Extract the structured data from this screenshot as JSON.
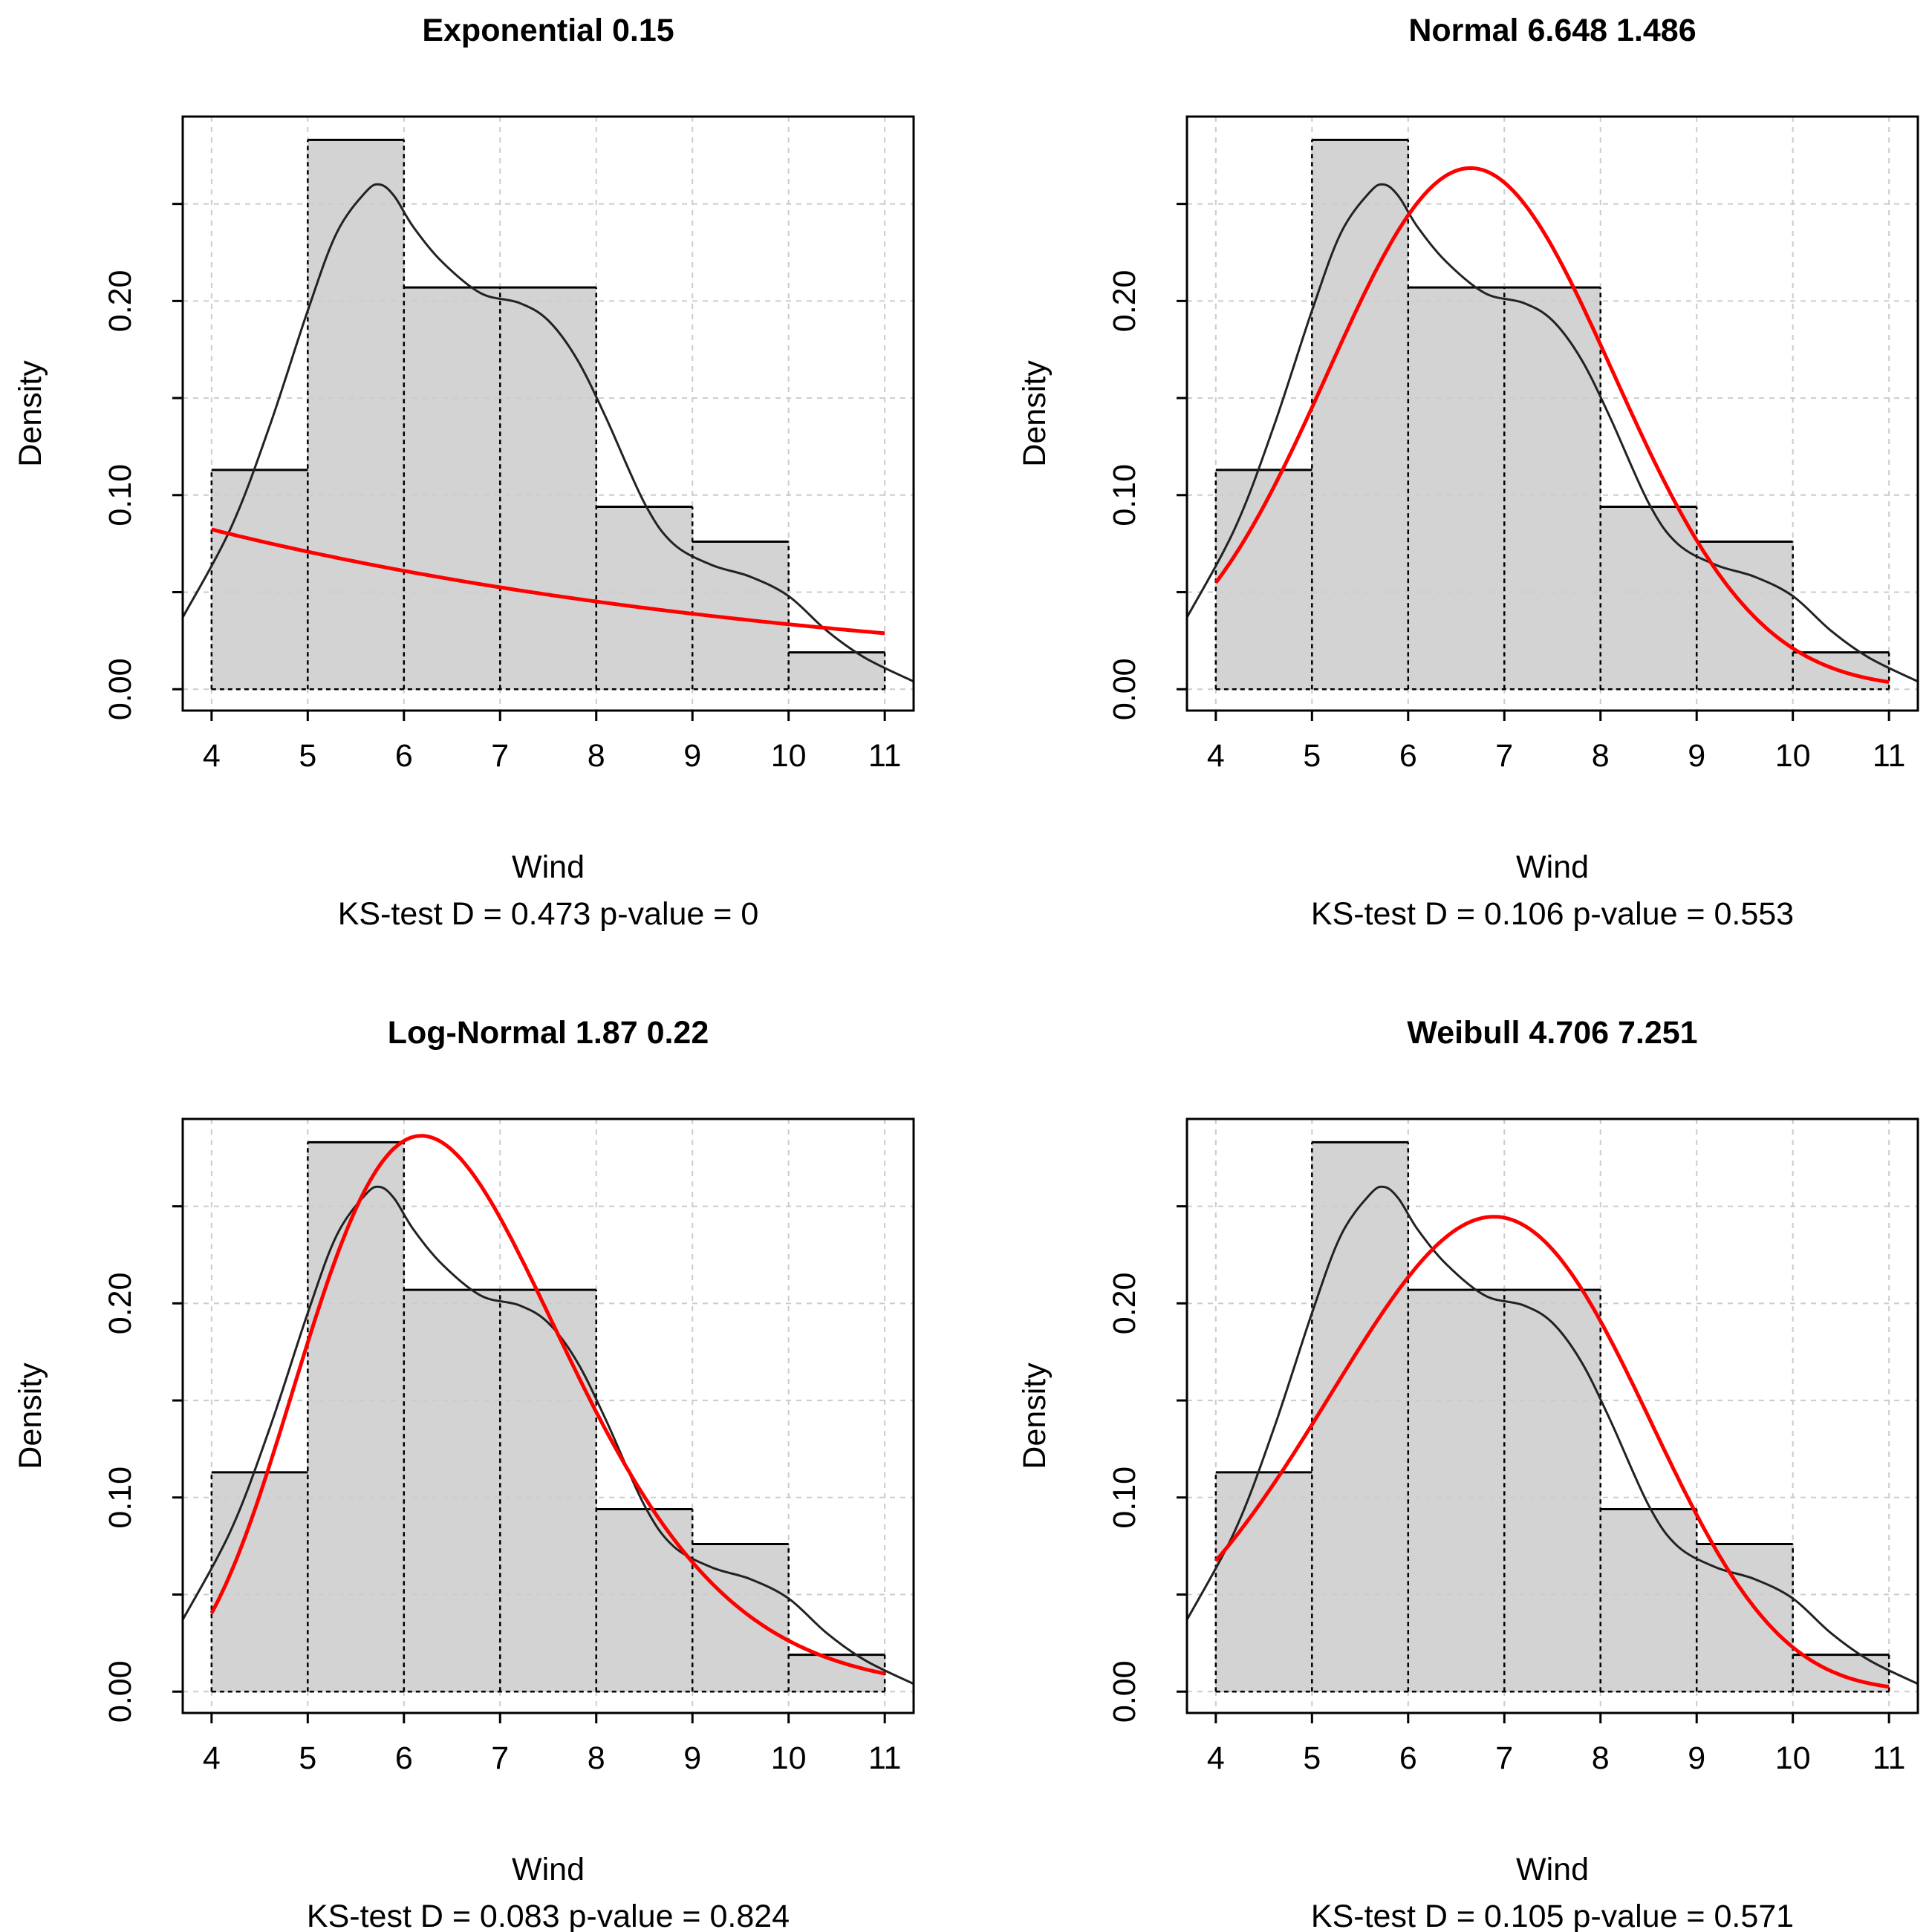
{
  "figure": {
    "rows": 2,
    "cols": 2
  },
  "chart_data": [
    {
      "type": "histogram",
      "title": "Exponential 0.15",
      "xlabel": "Wind",
      "ylabel": "Density",
      "subtitle": "KS-test D =  0.473 p-value =  0",
      "xlim": [
        3.7,
        11.3
      ],
      "ylim": [
        -0.011,
        0.295
      ],
      "x_ticks": [
        4,
        5,
        6,
        7,
        8,
        9,
        10,
        11
      ],
      "y_ticks": [
        0,
        0.05,
        0.1,
        0.15,
        0.2,
        0.25
      ],
      "y_tick_labels": [
        "0.00",
        "",
        "0.10",
        "",
        "0.20",
        ""
      ],
      "grid": true,
      "bins": [
        4,
        5,
        6,
        7,
        8,
        9,
        10,
        11
      ],
      "densities": [
        0.113,
        0.283,
        0.207,
        0.207,
        0.094,
        0.076,
        0.019
      ],
      "kde": {
        "x": [
          3.7,
          4.2,
          4.6,
          5.0,
          5.3,
          5.6,
          5.75,
          5.9,
          6.1,
          6.4,
          6.8,
          7.2,
          7.5,
          7.8,
          8.1,
          8.5,
          8.8,
          9.2,
          9.6,
          10.0,
          10.4,
          10.8,
          11.3
        ],
        "y": [
          0.037,
          0.083,
          0.135,
          0.195,
          0.235,
          0.256,
          0.26,
          0.254,
          0.238,
          0.22,
          0.204,
          0.199,
          0.19,
          0.17,
          0.14,
          0.096,
          0.075,
          0.064,
          0.058,
          0.048,
          0.03,
          0.016,
          0.004
        ]
      },
      "fit": {
        "name": "Exponential",
        "params": [
          0.15
        ]
      }
    },
    {
      "type": "histogram",
      "title": "Normal  6.648 1.486",
      "xlabel": "Wind",
      "ylabel": "Density",
      "subtitle": "KS-test D =  0.106 p-value =  0.553",
      "xlim": [
        3.7,
        11.3
      ],
      "ylim": [
        -0.011,
        0.295
      ],
      "x_ticks": [
        4,
        5,
        6,
        7,
        8,
        9,
        10,
        11
      ],
      "y_ticks": [
        0,
        0.05,
        0.1,
        0.15,
        0.2,
        0.25
      ],
      "y_tick_labels": [
        "0.00",
        "",
        "0.10",
        "",
        "0.20",
        ""
      ],
      "grid": true,
      "bins": [
        4,
        5,
        6,
        7,
        8,
        9,
        10,
        11
      ],
      "densities": [
        0.113,
        0.283,
        0.207,
        0.207,
        0.094,
        0.076,
        0.019
      ],
      "kde": {
        "x": [
          3.7,
          4.2,
          4.6,
          5.0,
          5.3,
          5.6,
          5.75,
          5.9,
          6.1,
          6.4,
          6.8,
          7.2,
          7.5,
          7.8,
          8.1,
          8.5,
          8.8,
          9.2,
          9.6,
          10.0,
          10.4,
          10.8,
          11.3
        ],
        "y": [
          0.037,
          0.083,
          0.135,
          0.195,
          0.235,
          0.256,
          0.26,
          0.254,
          0.238,
          0.22,
          0.204,
          0.199,
          0.19,
          0.17,
          0.14,
          0.096,
          0.075,
          0.064,
          0.058,
          0.048,
          0.03,
          0.016,
          0.004
        ]
      },
      "fit": {
        "name": "Normal",
        "params": [
          6.648,
          1.486
        ]
      }
    },
    {
      "type": "histogram",
      "title": "Log-Normal  1.87 0.22",
      "xlabel": "Wind",
      "ylabel": "Density",
      "subtitle": "KS-test D =  0.083 p-value =  0.824",
      "xlim": [
        3.7,
        11.3
      ],
      "ylim": [
        -0.011,
        0.295
      ],
      "x_ticks": [
        4,
        5,
        6,
        7,
        8,
        9,
        10,
        11
      ],
      "y_ticks": [
        0,
        0.05,
        0.1,
        0.15,
        0.2,
        0.25
      ],
      "y_tick_labels": [
        "0.00",
        "",
        "0.10",
        "",
        "0.20",
        ""
      ],
      "grid": true,
      "bins": [
        4,
        5,
        6,
        7,
        8,
        9,
        10,
        11
      ],
      "densities": [
        0.113,
        0.283,
        0.207,
        0.207,
        0.094,
        0.076,
        0.019
      ],
      "kde": {
        "x": [
          3.7,
          4.2,
          4.6,
          5.0,
          5.3,
          5.6,
          5.75,
          5.9,
          6.1,
          6.4,
          6.8,
          7.2,
          7.5,
          7.8,
          8.1,
          8.5,
          8.8,
          9.2,
          9.6,
          10.0,
          10.4,
          10.8,
          11.3
        ],
        "y": [
          0.037,
          0.083,
          0.135,
          0.195,
          0.235,
          0.256,
          0.26,
          0.254,
          0.238,
          0.22,
          0.204,
          0.199,
          0.19,
          0.17,
          0.14,
          0.096,
          0.075,
          0.064,
          0.058,
          0.048,
          0.03,
          0.016,
          0.004
        ]
      },
      "fit": {
        "name": "Log-Normal",
        "params": [
          1.87,
          0.22
        ]
      }
    },
    {
      "type": "histogram",
      "title": "Weibull  4.706 7.251",
      "xlabel": "Wind",
      "ylabel": "Density",
      "subtitle": "KS-test D =  0.105 p-value =  0.571",
      "xlim": [
        3.7,
        11.3
      ],
      "ylim": [
        -0.011,
        0.295
      ],
      "x_ticks": [
        4,
        5,
        6,
        7,
        8,
        9,
        10,
        11
      ],
      "y_ticks": [
        0,
        0.05,
        0.1,
        0.15,
        0.2,
        0.25
      ],
      "y_tick_labels": [
        "0.00",
        "",
        "0.10",
        "",
        "0.20",
        ""
      ],
      "grid": true,
      "bins": [
        4,
        5,
        6,
        7,
        8,
        9,
        10,
        11
      ],
      "densities": [
        0.113,
        0.283,
        0.207,
        0.207,
        0.094,
        0.076,
        0.019
      ],
      "kde": {
        "x": [
          3.7,
          4.2,
          4.6,
          5.0,
          5.3,
          5.6,
          5.75,
          5.9,
          6.1,
          6.4,
          6.8,
          7.2,
          7.5,
          7.8,
          8.1,
          8.5,
          8.8,
          9.2,
          9.6,
          10.0,
          10.4,
          10.8,
          11.3
        ],
        "y": [
          0.037,
          0.083,
          0.135,
          0.195,
          0.235,
          0.256,
          0.26,
          0.254,
          0.238,
          0.22,
          0.204,
          0.199,
          0.19,
          0.17,
          0.14,
          0.096,
          0.075,
          0.064,
          0.058,
          0.048,
          0.03,
          0.016,
          0.004
        ]
      },
      "fit": {
        "name": "Weibull",
        "params": [
          4.706,
          7.251
        ]
      }
    }
  ],
  "colors": {
    "bar_fill": "#d3d3d3",
    "fit_line": "#ff0000",
    "kde_line": "#222222",
    "grid": "#cccccc",
    "axes": "#000000"
  }
}
